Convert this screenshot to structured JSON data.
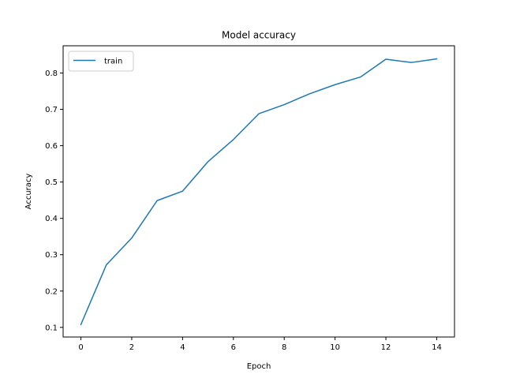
{
  "chart_data": {
    "type": "line",
    "title": "Model accuracy",
    "xlabel": "Epoch",
    "ylabel": "Accuracy",
    "xlim": [
      -0.7,
      14.7
    ],
    "ylim": [
      0.0735,
      0.875
    ],
    "xticks": [
      0,
      2,
      4,
      6,
      8,
      10,
      12,
      14
    ],
    "yticks": [
      0.1,
      0.2,
      0.3,
      0.4,
      0.5,
      0.6,
      0.7,
      0.8
    ],
    "grid": false,
    "legend_position": "upper-left",
    "series": [
      {
        "name": "train",
        "color": "#1f77b4",
        "x": [
          0,
          1,
          2,
          3,
          4,
          5,
          6,
          7,
          8,
          9,
          10,
          11,
          12,
          13,
          14
        ],
        "y": [
          0.108,
          0.272,
          0.346,
          0.449,
          0.475,
          0.556,
          0.617,
          0.688,
          0.713,
          0.743,
          0.768,
          0.789,
          0.838,
          0.829,
          0.839
        ]
      }
    ]
  }
}
